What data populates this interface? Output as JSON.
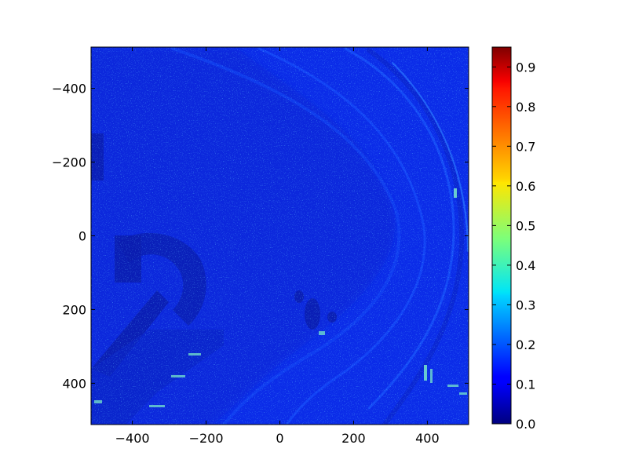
{
  "chart_data": {
    "type": "heatmap",
    "title": "",
    "xlabel": "",
    "ylabel": "",
    "colormap": "jet",
    "xlim": [
      -512,
      512
    ],
    "ylim": [
      512,
      -512
    ],
    "x_ticks": [
      -400,
      -200,
      0,
      200,
      400
    ],
    "x_tick_labels": [
      "−400",
      "−200",
      "0",
      "200",
      "400"
    ],
    "y_ticks": [
      -400,
      -200,
      0,
      200,
      400
    ],
    "y_tick_labels": [
      "−400",
      "−200",
      "0",
      "200",
      "400"
    ],
    "y_axis_inverted": true,
    "grid": false,
    "colorbar": {
      "range": [
        0.0,
        0.95
      ],
      "ticks": [
        0.0,
        0.1,
        0.2,
        0.3,
        0.4,
        0.5,
        0.6,
        0.7,
        0.8,
        0.9
      ],
      "tick_labels": [
        "0.0",
        "0.1",
        "0.2",
        "0.3",
        "0.4",
        "0.5",
        "0.6",
        "0.7",
        "0.8",
        "0.9"
      ]
    },
    "dominant_value_range": [
      0.05,
      0.2
    ],
    "colors": {
      "background_field": "#0b2ce8",
      "dark_region": "#0a1fb6",
      "bright_speckle": "#1e88ff",
      "hot_spot": "#7ff5c8"
    }
  }
}
